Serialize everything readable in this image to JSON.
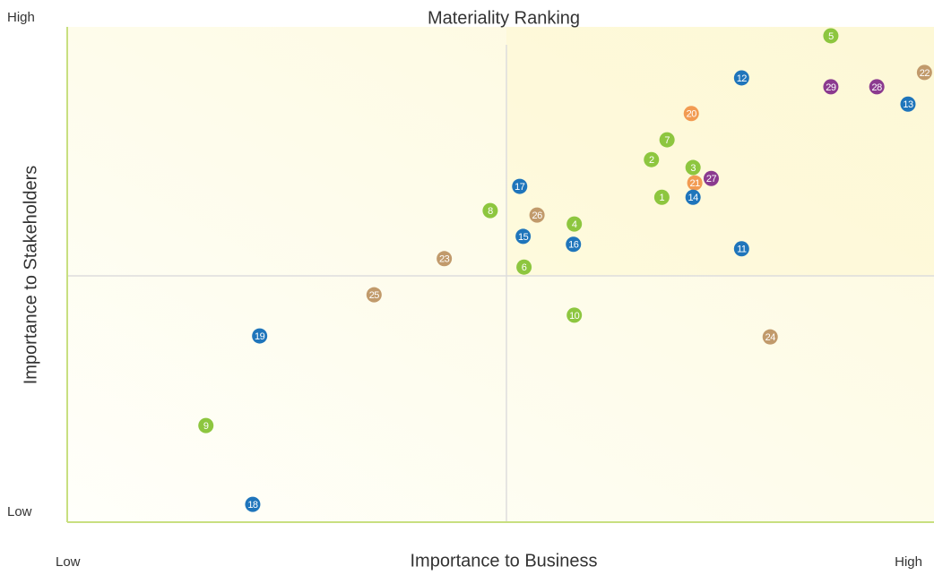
{
  "chart_data": {
    "type": "scatter",
    "title": "Materiality Ranking",
    "x_label": "Importance to Business",
    "y_label": "Importance to Stakeholders",
    "xlim": [
      0,
      100
    ],
    "ylim": [
      0,
      100
    ],
    "xticks": [
      {
        "value": 0,
        "label": "Low"
      },
      {
        "value": 100,
        "label": "High"
      }
    ],
    "yticks": [
      {
        "value": 0,
        "label": "Low"
      },
      {
        "value": 100,
        "label": "High"
      }
    ],
    "labels": [
      "5",
      "22",
      "12",
      "29",
      "28",
      "13",
      "20",
      "7",
      "2",
      "3",
      "27",
      "21",
      "17",
      "1",
      "14",
      "8",
      "26",
      "4",
      "15",
      "16",
      "11",
      "23",
      "6",
      "25",
      "10",
      "19",
      "24",
      "9",
      "18"
    ],
    "x": [
      88.1,
      98.9,
      77.8,
      88.1,
      93.4,
      97.0,
      72.0,
      69.2,
      67.4,
      72.2,
      74.3,
      72.4,
      52.2,
      68.6,
      72.2,
      48.8,
      54.2,
      58.5,
      52.6,
      58.4,
      77.8,
      43.5,
      52.7,
      35.4,
      58.5,
      22.2,
      81.1,
      16.0,
      21.4
    ],
    "y": [
      98.2,
      90.8,
      89.7,
      87.9,
      87.9,
      84.4,
      82.5,
      77.2,
      73.2,
      71.6,
      69.4,
      68.5,
      67.8,
      65.6,
      65.6,
      62.9,
      62.0,
      60.2,
      57.7,
      56.1,
      55.2,
      53.2,
      51.5,
      45.9,
      41.8,
      37.6,
      37.4,
      19.5,
      3.6
    ],
    "colors": [
      "#8dc63f",
      "#c19a6b",
      "#1f75bb",
      "#8b3a8f",
      "#8b3a8f",
      "#1f75bb",
      "#f29b52",
      "#8dc63f",
      "#8dc63f",
      "#8dc63f",
      "#8b3a8f",
      "#f29b52",
      "#1f75bb",
      "#8dc63f",
      "#1f75bb",
      "#8dc63f",
      "#c19a6b",
      "#8dc63f",
      "#1f75bb",
      "#1f75bb",
      "#1f75bb",
      "#c19a6b",
      "#8dc63f",
      "#c19a6b",
      "#8dc63f",
      "#1f75bb",
      "#c19a6b",
      "#8dc63f",
      "#1f75bb"
    ]
  }
}
